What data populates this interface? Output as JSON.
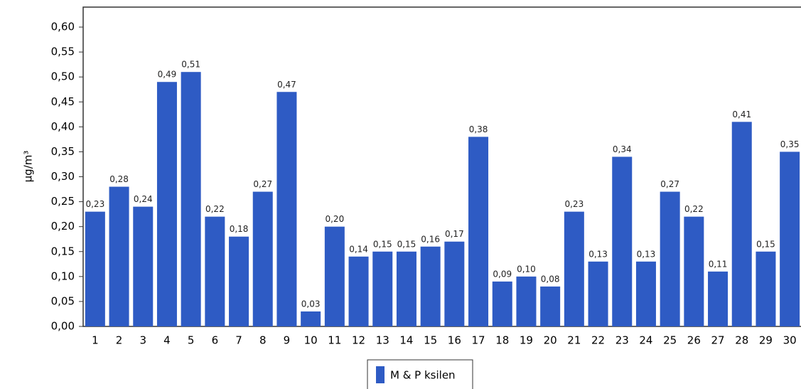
{
  "chart_data": {
    "type": "bar",
    "y_label": "µg/m³",
    "categories": [
      "1",
      "2",
      "3",
      "4",
      "5",
      "6",
      "7",
      "8",
      "9",
      "10",
      "11",
      "12",
      "13",
      "14",
      "15",
      "16",
      "17",
      "18",
      "19",
      "20",
      "21",
      "22",
      "23",
      "24",
      "25",
      "26",
      "27",
      "28",
      "29",
      "30"
    ],
    "series": [
      {
        "name": "M & P ksilen",
        "color": "#2e5bc4",
        "values": [
          0.23,
          0.28,
          0.24,
          0.49,
          0.51,
          0.22,
          0.18,
          0.27,
          0.47,
          0.03,
          0.2,
          0.14,
          0.15,
          0.15,
          0.16,
          0.17,
          0.38,
          0.09,
          0.1,
          0.08,
          0.23,
          0.13,
          0.34,
          0.13,
          0.27,
          0.22,
          0.11,
          0.41,
          0.15,
          0.35
        ],
        "value_labels": [
          "0,23",
          "0,28",
          "0,24",
          "0,49",
          "0,51",
          "0,22",
          "0,18",
          "0,27",
          "0,47",
          "0,03",
          "0,20",
          "0,14",
          "0,15",
          "0,15",
          "0,16",
          "0,17",
          "0,38",
          "0,09",
          "0,10",
          "0,08",
          "0,23",
          "0,13",
          "0,34",
          "0,13",
          "0,27",
          "0,22",
          "0,11",
          "0,41",
          "0,15",
          "0,35"
        ]
      }
    ],
    "ylim": [
      0,
      0.64
    ],
    "yticks": [
      {
        "value": 0,
        "label": "0,00"
      },
      {
        "value": 0.05,
        "label": "0,05"
      },
      {
        "value": 0.1,
        "label": "0,10"
      },
      {
        "value": 0.15,
        "label": "0,15"
      },
      {
        "value": 0.2,
        "label": "0,20"
      },
      {
        "value": 0.25,
        "label": "0,25"
      },
      {
        "value": 0.3,
        "label": "0,30"
      },
      {
        "value": 0.35,
        "label": "0,35"
      },
      {
        "value": 0.4,
        "label": "0,40"
      },
      {
        "value": 0.45,
        "label": "0,45"
      },
      {
        "value": 0.5,
        "label": "0,50"
      },
      {
        "value": 0.55,
        "label": "0,55"
      },
      {
        "value": 0.6,
        "label": "0,60"
      }
    ],
    "legend": "bottom"
  }
}
